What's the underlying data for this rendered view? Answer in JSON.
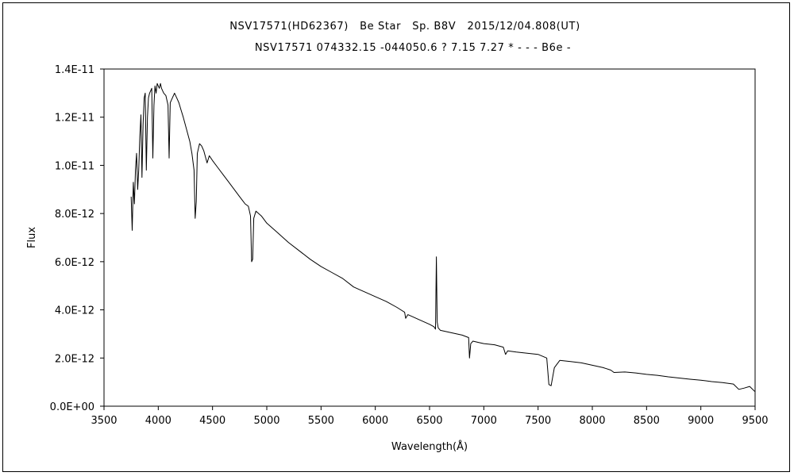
{
  "chart_data": {
    "type": "line",
    "title": "NSV17571(HD62367)   Be Star   Sp. B8V   2015/12/04.808(UT)",
    "subtitle": "NSV17571 074332.15 -044050.6 ? 7.15 7.27 * - - - B6e -",
    "xlabel": "Wavelength(Å)",
    "ylabel": "Flux",
    "xlim": [
      3500,
      9500
    ],
    "ylim": [
      0,
      1.4e-11
    ],
    "x_ticks": [
      3500,
      4000,
      4500,
      5000,
      5500,
      6000,
      6500,
      7000,
      7500,
      8000,
      8500,
      9000,
      9500
    ],
    "x_tick_labels": [
      "3500",
      "4000",
      "4500",
      "5000",
      "5500",
      "6000",
      "6500",
      "7000",
      "7500",
      "8000",
      "8500",
      "9000",
      "9500"
    ],
    "y_ticks": [
      0,
      2e-12,
      4e-12,
      6e-12,
      8e-12,
      1e-11,
      1.2e-11,
      1.4e-11
    ],
    "y_tick_labels": [
      "0.0E+00",
      "2.0E-12",
      "4.0E-12",
      "6.0E-12",
      "8.0E-12",
      "1.0E-11",
      "1.2E-11",
      "1.4E-11"
    ],
    "grid": false,
    "legend": "none",
    "line_color": "#000000",
    "series": [
      {
        "x": [
          3750,
          3760,
          3770,
          3780,
          3790,
          3800,
          3810,
          3820,
          3830,
          3840,
          3850,
          3860,
          3870,
          3880,
          3890,
          3900,
          3910,
          3920,
          3930,
          3940,
          3950,
          3960,
          3970,
          3980,
          3990,
          4000,
          4010,
          4020,
          4030,
          4050,
          4070,
          4090,
          4100,
          4110,
          4130,
          4150,
          4170,
          4190,
          4210,
          4230,
          4260,
          4290,
          4310,
          4330,
          4340,
          4350,
          4360,
          4380,
          4400,
          4420,
          4450,
          4470,
          4500,
          4550,
          4600,
          4650,
          4700,
          4750,
          4800,
          4830,
          4850,
          4860,
          4870,
          4880,
          4900,
          4950,
          5000,
          5100,
          5200,
          5300,
          5400,
          5500,
          5600,
          5700,
          5800,
          5850,
          5900,
          6000,
          6100,
          6200,
          6270,
          6280,
          6300,
          6400,
          6500,
          6540,
          6555,
          6563,
          6570,
          6580,
          6600,
          6700,
          6800,
          6860,
          6868,
          6880,
          6900,
          6950,
          7000,
          7100,
          7180,
          7200,
          7220,
          7300,
          7400,
          7500,
          7580,
          7600,
          7620,
          7650,
          7700,
          7800,
          7900,
          8000,
          8100,
          8170,
          8200,
          8300,
          8400,
          8500,
          8600,
          8700,
          8800,
          8900,
          9000,
          9100,
          9200,
          9300,
          9350,
          9400,
          9450,
          9500
        ],
        "y": [
          8.7e-12,
          7.3e-12,
          9.3e-12,
          8.4e-12,
          9.8e-12,
          1.05e-11,
          9e-12,
          9.8e-12,
          1.12e-11,
          1.21e-11,
          9.5e-12,
          1.17e-11,
          1.28e-11,
          1.3e-11,
          9.8e-12,
          1.2e-11,
          1.28e-11,
          1.3e-11,
          1.31e-11,
          1.32e-11,
          1.03e-11,
          1.25e-11,
          1.33e-11,
          1.3e-11,
          1.34e-11,
          1.33e-11,
          1.32e-11,
          1.34e-11,
          1.32e-11,
          1.3e-11,
          1.29e-11,
          1.25e-11,
          1.03e-11,
          1.26e-11,
          1.28e-11,
          1.3e-11,
          1.28e-11,
          1.26e-11,
          1.23e-11,
          1.2e-11,
          1.15e-11,
          1.1e-11,
          1.05e-11,
          9.8e-12,
          7.8e-12,
          8.5e-12,
          1.05e-11,
          1.09e-11,
          1.08e-11,
          1.06e-11,
          1.01e-11,
          1.04e-11,
          1.02e-11,
          9.9e-12,
          9.6e-12,
          9.3e-12,
          9e-12,
          8.7e-12,
          8.4e-12,
          8.3e-12,
          7.9e-12,
          6e-12,
          6.1e-12,
          7.8e-12,
          8.1e-12,
          7.9e-12,
          7.6e-12,
          7.2e-12,
          6.8e-12,
          6.45e-12,
          6.1e-12,
          5.8e-12,
          5.55e-12,
          5.3e-12,
          4.95e-12,
          4.85e-12,
          4.75e-12,
          4.55e-12,
          4.35e-12,
          4.1e-12,
          3.9e-12,
          3.65e-12,
          3.8e-12,
          3.6e-12,
          3.4e-12,
          3.3e-12,
          3.2e-12,
          6.2e-12,
          3.5e-12,
          3.25e-12,
          3.15e-12,
          3.05e-12,
          2.95e-12,
          2.85e-12,
          2e-12,
          2.6e-12,
          2.7e-12,
          2.65e-12,
          2.6e-12,
          2.55e-12,
          2.45e-12,
          2.15e-12,
          2.3e-12,
          2.25e-12,
          2.2e-12,
          2.15e-12,
          2e-12,
          9e-13,
          8.5e-13,
          1.6e-12,
          1.9e-12,
          1.85e-12,
          1.8e-12,
          1.7e-12,
          1.6e-12,
          1.5e-12,
          1.4e-12,
          1.42e-12,
          1.38e-12,
          1.32e-12,
          1.28e-12,
          1.22e-12,
          1.17e-12,
          1.12e-12,
          1.08e-12,
          1.02e-12,
          9.8e-13,
          9.2e-13,
          7e-13,
          7.5e-13,
          8.2e-13,
          6e-13
        ]
      }
    ]
  }
}
